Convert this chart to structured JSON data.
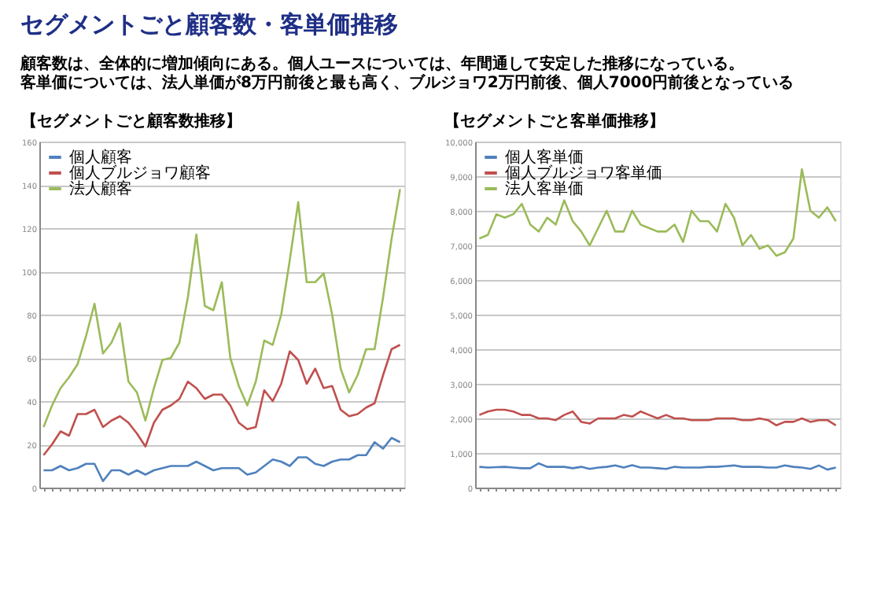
{
  "chart_data": [
    {
      "type": "line",
      "title": "【セグメントごと顧客数推移】",
      "annotations": [
        "セグメントごと顧客数・客単価推移",
        "顧客数は、全体的に増加傾向にある。個人ユースについては、年間通して安定した推移になっている。",
        "客単価については、法人単価が8万円前後と最も高く、ブルジョワ2万円前後、個人7000円前後となっている"
      ],
      "categories": [
        null,
        null,
        null,
        null,
        null,
        null,
        null,
        null,
        null,
        null,
        null,
        null,
        null,
        null,
        null,
        null,
        null,
        null,
        null,
        null,
        null,
        null,
        null,
        null,
        null,
        null,
        null,
        null,
        null,
        null,
        null,
        null,
        null,
        null,
        null,
        null,
        null,
        null,
        null,
        null,
        null,
        null,
        null
      ],
      "ylim": [
        0,
        160
      ],
      "yticks": [
        0,
        20,
        40,
        60,
        80,
        100,
        120,
        140,
        160
      ],
      "grid": "y",
      "legend": "top left",
      "tick_labels": "y",
      "marker": "none",
      "line_style": "solid",
      "series": [
        {
          "name": "個人顧客",
          "color": "#4f81bd",
          "values": [
            8,
            8,
            10,
            8,
            9,
            11,
            11,
            3,
            8,
            8,
            6,
            8,
            6,
            8,
            9,
            10,
            10,
            10,
            12,
            10,
            8,
            9,
            9,
            9,
            6,
            7,
            10,
            13,
            12,
            10,
            14,
            14,
            11,
            10,
            12,
            13,
            13,
            15,
            15,
            21,
            18,
            23,
            21
          ]
        },
        {
          "name": "個人ブルジョワ顧客",
          "color": "#c0504d",
          "values": [
            15,
            20,
            26,
            24,
            34,
            34,
            36,
            28,
            31,
            33,
            30,
            25,
            19,
            30,
            36,
            38,
            41,
            49,
            46,
            41,
            43,
            43,
            38,
            30,
            27,
            28,
            45,
            40,
            48,
            63,
            59,
            48,
            55,
            46,
            47,
            36,
            33,
            34,
            37,
            39,
            52,
            64,
            66
          ]
        },
        {
          "name": "法人顧客",
          "color": "#9bbb59",
          "values": [
            28,
            38,
            46,
            51,
            57,
            70,
            85,
            62,
            67,
            76,
            49,
            44,
            31,
            46,
            59,
            60,
            67,
            88,
            117,
            84,
            82,
            95,
            60,
            47,
            38,
            49,
            68,
            66,
            80,
            105,
            132,
            95,
            95,
            99,
            80,
            55,
            44,
            52,
            64,
            64,
            88,
            115,
            138
          ]
        }
      ]
    },
    {
      "type": "line",
      "title": "【セグメントごと客単価推移】",
      "categories": [
        null,
        null,
        null,
        null,
        null,
        null,
        null,
        null,
        null,
        null,
        null,
        null,
        null,
        null,
        null,
        null,
        null,
        null,
        null,
        null,
        null,
        null,
        null,
        null,
        null,
        null,
        null,
        null,
        null,
        null,
        null,
        null,
        null,
        null,
        null,
        null,
        null,
        null,
        null,
        null,
        null,
        null,
        null
      ],
      "ylim": [
        0,
        10000
      ],
      "yticks": [
        0,
        {
          "value": 1000,
          "label": "1,000"
        },
        {
          "value": 2000,
          "label": "2,000"
        },
        {
          "value": 3000,
          "label": "3,000"
        },
        {
          "value": 4000,
          "label": "4,000"
        },
        {
          "value": 5000,
          "label": "5,000"
        },
        {
          "value": 6000,
          "label": "6,000"
        },
        {
          "value": 7000,
          "label": "7,000"
        },
        {
          "value": 8000,
          "label": "8,000"
        },
        {
          "value": 9000,
          "label": "9,000"
        },
        {
          "value": 10000,
          "label": "10,000"
        }
      ],
      "grid": "y",
      "legend": "top left",
      "tick_labels": "y",
      "marker": "none",
      "line_style": "solid",
      "series": [
        {
          "name": "個人客単価",
          "color": "#4f81bd",
          "values": [
            600,
            580,
            590,
            600,
            580,
            560,
            560,
            700,
            600,
            600,
            600,
            560,
            600,
            540,
            580,
            600,
            640,
            580,
            650,
            580,
            580,
            560,
            540,
            600,
            580,
            580,
            580,
            600,
            600,
            620,
            640,
            600,
            600,
            600,
            580,
            580,
            640,
            600,
            580,
            540,
            640,
            520,
            580
          ]
        },
        {
          "name": "個人ブルジョワ客単価",
          "color": "#c0504d",
          "values": [
            2100,
            2200,
            2250,
            2250,
            2200,
            2100,
            2100,
            2000,
            2000,
            1950,
            2100,
            2200,
            1900,
            1850,
            2000,
            2000,
            2000,
            2100,
            2050,
            2200,
            2100,
            2000,
            2100,
            2000,
            2000,
            1950,
            1950,
            1950,
            2000,
            2000,
            2000,
            1950,
            1950,
            2000,
            1950,
            1800,
            1900,
            1900,
            2000,
            1900,
            1950,
            1950,
            1800
          ]
        },
        {
          "name": "法人客単価",
          "color": "#9bbb59",
          "values": [
            7200,
            7300,
            7900,
            7800,
            7900,
            8200,
            7600,
            7400,
            7800,
            7600,
            8300,
            7700,
            7400,
            7000,
            7500,
            8000,
            7400,
            7400,
            8000,
            7600,
            7500,
            7400,
            7400,
            7600,
            7100,
            8000,
            7700,
            7700,
            7400,
            8200,
            7800,
            7000,
            7300,
            6900,
            7000,
            6700,
            6800,
            7200,
            9200,
            8000,
            7800,
            8100,
            7700
          ]
        }
      ]
    }
  ]
}
